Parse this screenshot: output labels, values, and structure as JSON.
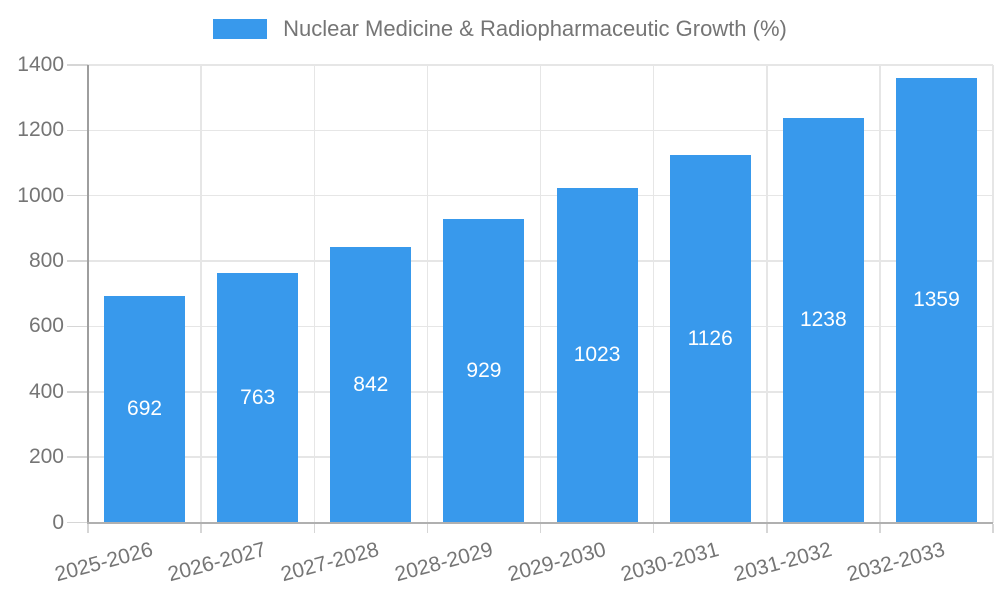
{
  "chart_data": {
    "type": "bar",
    "legend": "Nuclear Medicine & Radiopharmaceutic Growth (%)",
    "legend_position": "top",
    "categories": [
      "2025-2026",
      "2026-2027",
      "2027-2028",
      "2028-2029",
      "2029-2030",
      "2030-2031",
      "2031-2032",
      "2032-2033"
    ],
    "values": [
      692,
      763,
      842,
      929,
      1023,
      1126,
      1238,
      1359
    ],
    "yticks": [
      0,
      200,
      400,
      600,
      800,
      1000,
      1200,
      1400
    ],
    "ylim": [
      0,
      1400
    ],
    "grid": true,
    "xlabel": "",
    "ylabel": "",
    "colors": {
      "bar": "#3899ec",
      "value_label": "#ffffff",
      "tick_label": "#757575",
      "legend_label": "#757575",
      "gridline": "#e6e6e6",
      "axis_line": "#9e9e9e",
      "tick_mark": "#d6d6d6",
      "background": "#ffffff"
    }
  }
}
